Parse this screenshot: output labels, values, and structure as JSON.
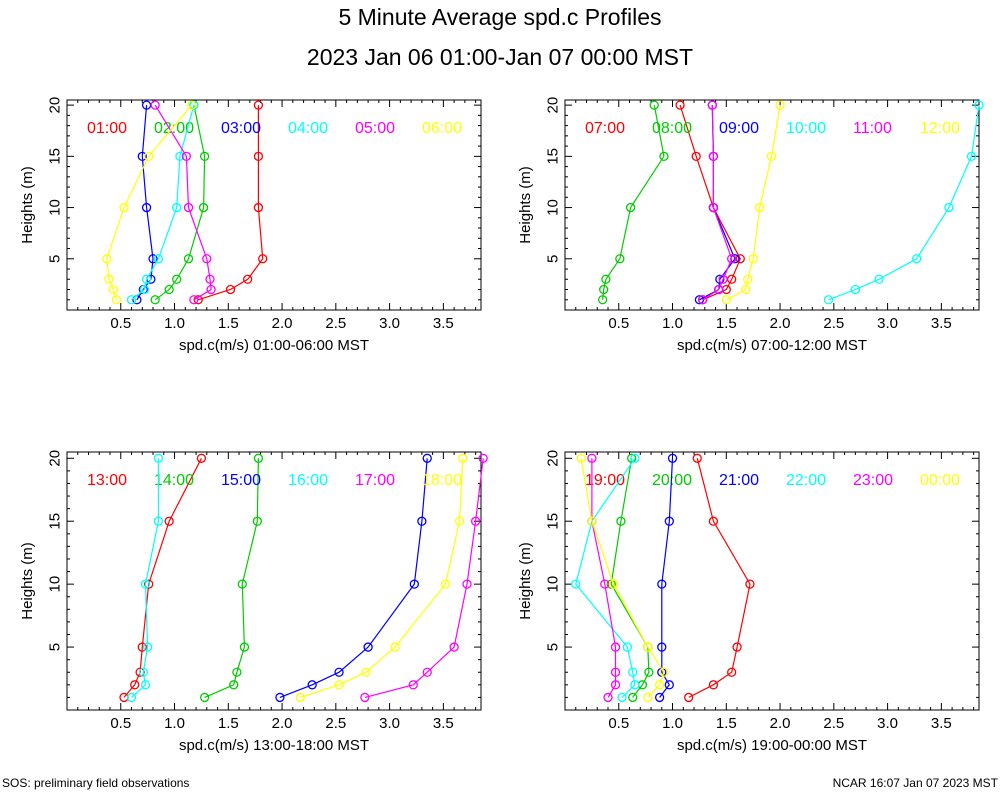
{
  "page": {
    "title": "5 Minute Average spd.c Profiles",
    "subtitle": "2023 Jan 06 01:00-Jan 07 00:00 MST",
    "footer_left": "SOS: preliminary field observations",
    "footer_right": "NCAR 16:07 Jan 07 2023 MST"
  },
  "colors": [
    "#ff0000",
    "#00cc00",
    "#0000ff",
    "#00ffff",
    "#ff00ff",
    "#ffff00"
  ],
  "chart_data": [
    {
      "type": "line",
      "xlabel": "spd.c(m/s) 01:00-06:00 MST",
      "ylabel": "Heights (m)",
      "xlim": [
        0.0,
        3.85
      ],
      "ylim": [
        0,
        20.5
      ],
      "xticks": [
        "0.5",
        "1.0",
        "1.5",
        "2.0",
        "2.5",
        "3.0",
        "3.5"
      ],
      "yticks": [
        "5",
        "10",
        "15",
        "20"
      ],
      "heights": [
        1,
        2,
        3,
        5,
        10,
        15,
        20
      ],
      "series": [
        {
          "name": "01:00",
          "values": [
            1.22,
            1.52,
            1.68,
            1.82,
            1.78,
            1.78,
            1.78
          ]
        },
        {
          "name": "02:00",
          "values": [
            0.82,
            0.95,
            1.02,
            1.13,
            1.27,
            1.28,
            1.18
          ]
        },
        {
          "name": "03:00",
          "values": [
            0.65,
            0.71,
            0.78,
            0.8,
            0.74,
            0.7,
            0.74
          ]
        },
        {
          "name": "04:00",
          "values": [
            0.6,
            0.72,
            0.74,
            0.85,
            1.02,
            1.05,
            1.18
          ]
        },
        {
          "name": "05:00",
          "values": [
            1.18,
            1.34,
            1.33,
            1.3,
            1.13,
            1.11,
            0.82
          ]
        },
        {
          "name": "06:00",
          "values": [
            0.46,
            0.43,
            0.39,
            0.37,
            0.53,
            0.76,
            1.16
          ]
        }
      ]
    },
    {
      "type": "line",
      "xlabel": "spd.c(m/s) 07:00-12:00 MST",
      "ylabel": "Heights (m)",
      "xlim": [
        0.0,
        3.85
      ],
      "ylim": [
        0,
        20.5
      ],
      "xticks": [
        "0.5",
        "1.0",
        "1.5",
        "2.0",
        "2.5",
        "3.0",
        "3.5"
      ],
      "yticks": [
        "5",
        "10",
        "15",
        "20"
      ],
      "heights": [
        1,
        2,
        3,
        5,
        10,
        15,
        20
      ],
      "series": [
        {
          "name": "07:00",
          "values": [
            1.28,
            1.5,
            1.55,
            1.63,
            1.38,
            1.22,
            1.07
          ]
        },
        {
          "name": "08:00",
          "values": [
            0.35,
            0.36,
            0.38,
            0.51,
            0.61,
            0.92,
            0.83
          ]
        },
        {
          "name": "09:00",
          "values": [
            1.25,
            1.43,
            1.44,
            1.58,
            1.38,
            1.38,
            1.37
          ]
        },
        {
          "name": "10:00",
          "values": [
            2.45,
            2.7,
            2.92,
            3.27,
            3.57,
            3.78,
            3.85
          ]
        },
        {
          "name": "11:00",
          "values": [
            1.28,
            1.43,
            1.47,
            1.55,
            1.38,
            1.38,
            1.37
          ]
        },
        {
          "name": "12:00",
          "values": [
            1.5,
            1.68,
            1.7,
            1.75,
            1.81,
            1.92,
            2.0
          ]
        }
      ]
    },
    {
      "type": "line",
      "xlabel": "spd.c(m/s) 13:00-18:00 MST",
      "ylabel": "Heights (m)",
      "xlim": [
        0.0,
        3.85
      ],
      "ylim": [
        0,
        20.5
      ],
      "xticks": [
        "0.5",
        "1.0",
        "1.5",
        "2.0",
        "2.5",
        "3.0",
        "3.5"
      ],
      "yticks": [
        "5",
        "10",
        "15",
        "20"
      ],
      "heights": [
        1,
        2,
        3,
        5,
        10,
        15,
        20
      ],
      "series": [
        {
          "name": "13:00",
          "values": [
            0.53,
            0.63,
            0.68,
            0.7,
            0.76,
            0.95,
            1.25
          ]
        },
        {
          "name": "14:00",
          "values": [
            1.28,
            1.55,
            1.58,
            1.65,
            1.63,
            1.77,
            1.78
          ]
        },
        {
          "name": "15:00",
          "values": [
            1.98,
            2.28,
            2.53,
            2.8,
            3.23,
            3.3,
            3.35
          ]
        },
        {
          "name": "16:00",
          "values": [
            0.6,
            0.73,
            0.71,
            0.75,
            0.73,
            0.85,
            0.85
          ]
        },
        {
          "name": "17:00",
          "values": [
            2.77,
            3.22,
            3.35,
            3.6,
            3.72,
            3.8,
            3.87
          ]
        },
        {
          "name": "18:00",
          "values": [
            2.17,
            2.53,
            2.78,
            3.05,
            3.52,
            3.65,
            3.68
          ]
        }
      ]
    },
    {
      "type": "line",
      "xlabel": "spd.c(m/s) 19:00-00:00 MST",
      "ylabel": "Heights (m)",
      "xlim": [
        0.0,
        3.85
      ],
      "ylim": [
        0,
        20.5
      ],
      "xticks": [
        "0.5",
        "1.0",
        "1.5",
        "2.0",
        "2.5",
        "3.0",
        "3.5"
      ],
      "yticks": [
        "5",
        "10",
        "15",
        "20"
      ],
      "heights": [
        1,
        2,
        3,
        5,
        10,
        15,
        20
      ],
      "series": [
        {
          "name": "19:00",
          "values": [
            1.15,
            1.38,
            1.55,
            1.6,
            1.72,
            1.38,
            1.23
          ]
        },
        {
          "name": "20:00",
          "values": [
            0.63,
            0.72,
            0.78,
            0.77,
            0.43,
            0.52,
            0.62
          ]
        },
        {
          "name": "21:00",
          "values": [
            0.88,
            0.97,
            0.9,
            0.9,
            0.9,
            0.97,
            1.0
          ]
        },
        {
          "name": "22:00",
          "values": [
            0.53,
            0.65,
            0.63,
            0.58,
            0.1,
            0.25,
            0.65
          ]
        },
        {
          "name": "23:00",
          "values": [
            0.4,
            0.47,
            0.47,
            0.47,
            0.37,
            0.25,
            0.25
          ]
        },
        {
          "name": "00:00",
          "values": [
            0.77,
            0.88,
            0.92,
            0.77,
            0.45,
            0.25,
            0.15
          ]
        }
      ]
    }
  ]
}
